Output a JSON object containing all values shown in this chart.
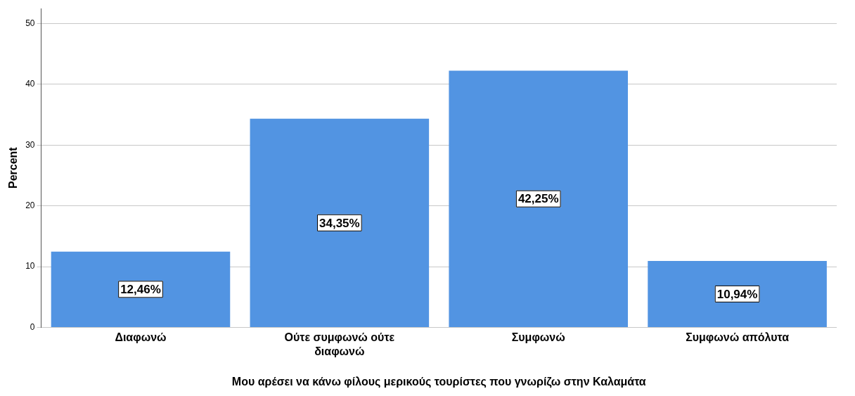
{
  "chart_data": {
    "type": "bar",
    "xlabel": "Μου αρέσει να κάνω φίλους μερικούς τουρίστες που γνωρίζω στην Καλαμάτα",
    "ylabel": "Percent",
    "categories": [
      "Διαφωνώ",
      "Ούτε συμφωνώ ούτε διαφωνώ",
      "Συμφωνώ",
      "Συμφωνώ απόλυτα"
    ],
    "values": [
      12.46,
      34.35,
      42.25,
      10.94
    ],
    "value_labels": [
      "12,46%",
      "34,35%",
      "42,25%",
      "10,94%"
    ],
    "color": "#5294e2",
    "ylim": [
      0,
      52.5
    ],
    "yticks": [
      0,
      10,
      20,
      30,
      40,
      50
    ],
    "grid": "y",
    "legend": false
  }
}
